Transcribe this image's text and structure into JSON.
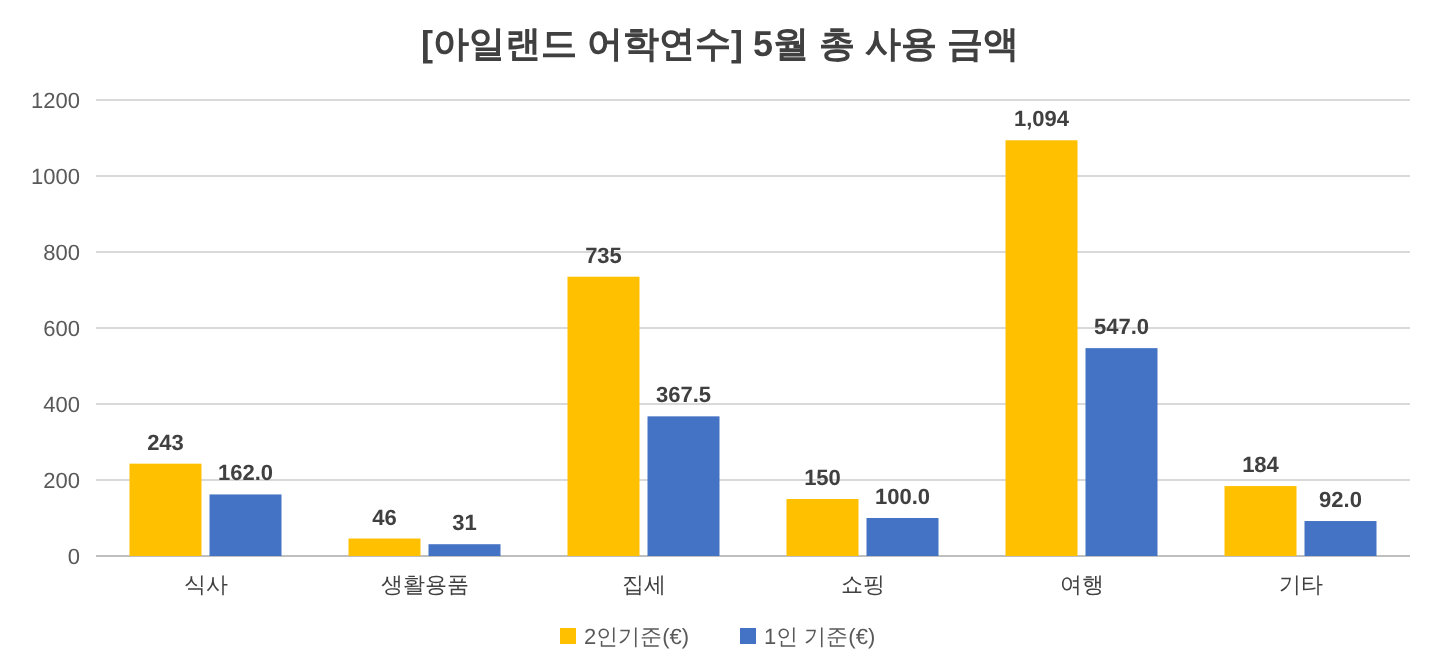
{
  "chart_data": {
    "type": "bar",
    "title": "[아일랜드 어학연수] 5월 총 사용 금액",
    "categories": [
      "식사",
      "생활용품",
      "집세",
      "쇼핑",
      "여행",
      "기타"
    ],
    "series": [
      {
        "name": "2인기준(€)",
        "color": "#ffc000",
        "values": [
          243,
          46,
          735,
          150,
          1094,
          184
        ],
        "value_labels": [
          "243",
          "46",
          "735",
          "150",
          "1,094",
          "184"
        ]
      },
      {
        "name": "1인 기준(€)",
        "color": "#4472c4",
        "values": [
          162.0,
          31,
          367.5,
          100.0,
          547.0,
          92.0
        ],
        "value_labels": [
          "162.0",
          "31",
          "367.5",
          "100.0",
          "547.0",
          "92.0"
        ]
      }
    ],
    "ylim": [
      0,
      1200
    ],
    "yticks": [
      0,
      200,
      400,
      600,
      800,
      1000,
      1200
    ],
    "grid": "y",
    "legend": "bottom"
  }
}
